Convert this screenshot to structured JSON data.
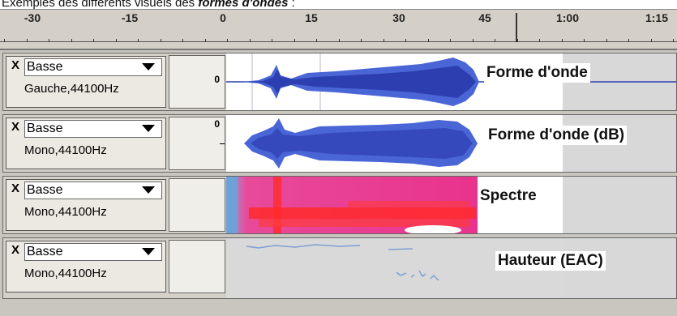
{
  "caption": {
    "prefix": "Exemples des différents visuels des ",
    "emphasis": "formes d'ondes",
    "suffix": " :"
  },
  "ruler": {
    "labels": [
      "-30",
      "-15",
      "0",
      "15",
      "30",
      "45",
      "1:00",
      "1:15"
    ]
  },
  "tracks": [
    {
      "close": "X",
      "name": "Basse",
      "info": "Gauche,44100Hz",
      "vruler": "0",
      "display_label": "Forme d'onde",
      "view": "waveform"
    },
    {
      "close": "X",
      "name": "Basse",
      "info": "Mono,44100Hz",
      "vruler": "0",
      "display_label": "Forme d'onde (dB)",
      "view": "waveform-db"
    },
    {
      "close": "X",
      "name": "Basse",
      "info": "Mono,44100Hz",
      "vruler": "",
      "display_label": "Spectre",
      "view": "spectrum"
    },
    {
      "close": "X",
      "name": "Basse",
      "info": "Mono,44100Hz",
      "vruler": "",
      "display_label": "Hauteur (EAC)",
      "view": "pitch"
    }
  ],
  "colors": {
    "wave_dark": "#2d3fb0",
    "wave_light": "#4a66d6",
    "spectrum_red": "#ff2a2a",
    "spectrum_pink": "#e8338c",
    "pitch_dots": "#7f9fd6"
  }
}
